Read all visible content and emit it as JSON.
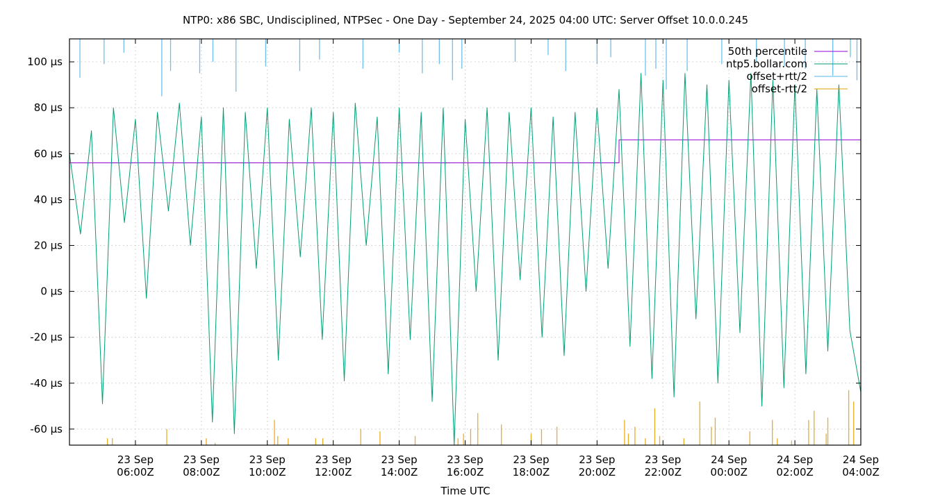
{
  "chart_data": {
    "type": "line",
    "title": "NTP0: x86 SBC, Undisciplined, NTPSec - One Day - September 24, 2025 04:00 UTC: Server Offset 10.0.0.245",
    "xlabel": "Time UTC",
    "ylabel": "",
    "xlim": [
      "09-23 04:00",
      "09-24 04:00"
    ],
    "ylim": [
      -67,
      110
    ],
    "grid": true,
    "legend_position": "top-right",
    "y_ticks": [
      {
        "value": 100,
        "label": "100 µs"
      },
      {
        "value": 80,
        "label": "80 µs"
      },
      {
        "value": 60,
        "label": "60 µs"
      },
      {
        "value": 40,
        "label": "40 µs"
      },
      {
        "value": 20,
        "label": "20 µs"
      },
      {
        "value": 0,
        "label": "0 µs"
      },
      {
        "value": -20,
        "label": "-20 µs"
      },
      {
        "value": -40,
        "label": "-40 µs"
      },
      {
        "value": -60,
        "label": "-60 µs"
      }
    ],
    "x_ticks": [
      {
        "value": "09-23 06:00",
        "line1": "23 Sep",
        "line2": "06:00Z"
      },
      {
        "value": "09-23 08:00",
        "line1": "23 Sep",
        "line2": "08:00Z"
      },
      {
        "value": "09-23 10:00",
        "line1": "23 Sep",
        "line2": "10:00Z"
      },
      {
        "value": "09-23 12:00",
        "line1": "23 Sep",
        "line2": "12:00Z"
      },
      {
        "value": "09-23 14:00",
        "line1": "23 Sep",
        "line2": "14:00Z"
      },
      {
        "value": "09-23 16:00",
        "line1": "23 Sep",
        "line2": "16:00Z"
      },
      {
        "value": "09-23 18:00",
        "line1": "23 Sep",
        "line2": "18:00Z"
      },
      {
        "value": "09-23 20:00",
        "line1": "23 Sep",
        "line2": "20:00Z"
      },
      {
        "value": "09-23 22:00",
        "line1": "23 Sep",
        "line2": "22:00Z"
      },
      {
        "value": "09-24 00:00",
        "line1": "24 Sep",
        "line2": "00:00Z"
      },
      {
        "value": "09-24 02:00",
        "line1": "24 Sep",
        "line2": "02:00Z"
      },
      {
        "value": "09-24 04:00",
        "line1": "24 Sep",
        "line2": "04:00Z"
      }
    ],
    "series": [
      {
        "name": "50th percentile",
        "color": "#9400d3",
        "style": "line",
        "x": [
          "09-23 04:00",
          "09-23 20:40",
          "09-23 20:40",
          "09-24 04:00"
        ],
        "values": [
          56,
          56,
          66,
          66
        ]
      },
      {
        "name": "ntp5.bollar.com",
        "color": "#009e73",
        "style": "line",
        "x": [
          "09-23 04:00",
          "09-23 04:20",
          "09-23 04:40",
          "09-23 05:00",
          "09-23 05:20",
          "09-23 05:40",
          "09-23 06:00",
          "09-23 06:20",
          "09-23 06:40",
          "09-23 07:00",
          "09-23 07:20",
          "09-23 07:40",
          "09-23 08:00",
          "09-23 08:20",
          "09-23 08:40",
          "09-23 09:00",
          "09-23 09:20",
          "09-23 09:40",
          "09-23 10:00",
          "09-23 10:20",
          "09-23 10:40",
          "09-23 11:00",
          "09-23 11:20",
          "09-23 11:40",
          "09-23 12:00",
          "09-23 12:20",
          "09-23 12:40",
          "09-23 13:00",
          "09-23 13:20",
          "09-23 13:40",
          "09-23 14:00",
          "09-23 14:20",
          "09-23 14:40",
          "09-23 15:00",
          "09-23 15:20",
          "09-23 15:40",
          "09-23 16:00",
          "09-23 16:20",
          "09-23 16:40",
          "09-23 17:00",
          "09-23 17:20",
          "09-23 17:40",
          "09-23 18:00",
          "09-23 18:20",
          "09-23 18:40",
          "09-23 19:00",
          "09-23 19:20",
          "09-23 19:40",
          "09-23 20:00",
          "09-23 20:20",
          "09-23 20:40",
          "09-23 21:00",
          "09-23 21:20",
          "09-23 21:40",
          "09-23 22:00",
          "09-23 22:20",
          "09-23 22:40",
          "09-23 23:00",
          "09-23 23:20",
          "09-23 23:40",
          "09-24 00:00",
          "09-24 00:20",
          "09-24 00:40",
          "09-24 01:00",
          "09-24 01:20",
          "09-24 01:40",
          "09-24 02:00",
          "09-24 02:20",
          "09-24 02:40",
          "09-24 03:00",
          "09-24 03:20",
          "09-24 03:40",
          "09-24 04:00"
        ],
        "values": [
          60,
          25,
          70,
          -49,
          80,
          30,
          75,
          -3,
          78,
          35,
          82,
          20,
          76,
          -57,
          80,
          -62,
          78,
          10,
          80,
          -30,
          75,
          15,
          80,
          -21,
          78,
          -39,
          82,
          20,
          76,
          -36,
          80,
          -21,
          78,
          -48,
          80,
          -67,
          75,
          0,
          80,
          -30,
          78,
          5,
          80,
          -20,
          76,
          -28,
          78,
          0,
          80,
          10,
          88,
          -24,
          95,
          -38,
          92,
          -46,
          95,
          -12,
          90,
          -40,
          92,
          -18,
          95,
          -50,
          92,
          -42,
          90,
          -36,
          88,
          -26,
          90,
          -17,
          -44
        ]
      },
      {
        "name": "offset+rtt/2",
        "color": "#56b4e9",
        "style": "spikes-from-top",
        "x": [
          "09-23 04:19",
          "09-23 05:03",
          "09-23 05:39",
          "09-23 06:48",
          "09-23 07:04",
          "09-23 07:57",
          "09-23 08:21",
          "09-23 09:03",
          "09-23 09:57",
          "09-23 10:59",
          "09-23 11:35",
          "09-23 12:54",
          "09-23 14:00",
          "09-23 14:42",
          "09-23 15:13",
          "09-23 15:37",
          "09-23 15:54",
          "09-23 17:31",
          "09-23 18:31",
          "09-23 19:03",
          "09-23 20:00",
          "09-23 20:25",
          "09-23 21:28",
          "09-23 21:47",
          "09-23 22:06",
          "09-23 22:44",
          "09-23 23:47",
          "09-24 00:50",
          "09-24 01:41",
          "09-24 02:19",
          "09-24 03:09",
          "09-24 03:41",
          "09-24 03:53"
        ],
        "values": [
          93,
          99,
          104,
          85,
          96,
          95,
          100,
          87,
          98,
          96,
          101,
          97,
          104,
          95,
          99,
          92,
          97,
          100,
          103,
          96,
          99,
          102,
          94,
          97,
          88,
          96,
          99,
          100,
          98,
          97,
          94,
          102,
          92
        ]
      },
      {
        "name": "offset-rtt/2",
        "color": "#e69f00",
        "style": "spikes-from-bottom",
        "x": [
          "09-23 05:09",
          "09-23 05:18",
          "09-23 06:57",
          "09-23 08:09",
          "09-23 08:25",
          "09-23 10:13",
          "09-23 10:19",
          "09-23 10:38",
          "09-23 11:28",
          "09-23 11:41",
          "09-23 12:50",
          "09-23 13:25",
          "09-23 14:29",
          "09-23 15:47",
          "09-23 15:57",
          "09-23 16:10",
          "09-23 16:23",
          "09-23 17:06",
          "09-23 18:00",
          "09-23 18:19",
          "09-23 18:47",
          "09-23 20:50",
          "09-23 20:57",
          "09-23 21:09",
          "09-23 21:28",
          "09-23 21:45",
          "09-23 21:54",
          "09-23 22:38",
          "09-23 23:07",
          "09-23 23:28",
          "09-23 23:35",
          "09-24 00:38",
          "09-24 01:19",
          "09-24 01:28",
          "09-24 01:54",
          "09-24 02:25",
          "09-24 02:35",
          "09-24 02:57",
          "09-24 03:00",
          "09-24 03:38",
          "09-24 03:47"
        ],
        "values": [
          -64,
          -64,
          -60,
          -64,
          -66,
          -56,
          -63,
          -64,
          -64,
          -64,
          -60,
          -61,
          -63,
          -64,
          -62,
          -60,
          -53,
          -58,
          -62,
          -60,
          -59,
          -56,
          -62,
          -59,
          -64,
          -51,
          -63,
          -64,
          -48,
          -59,
          -55,
          -61,
          -56,
          -64,
          -65,
          -56,
          -52,
          -62,
          -55,
          -43,
          -48
        ]
      }
    ]
  }
}
